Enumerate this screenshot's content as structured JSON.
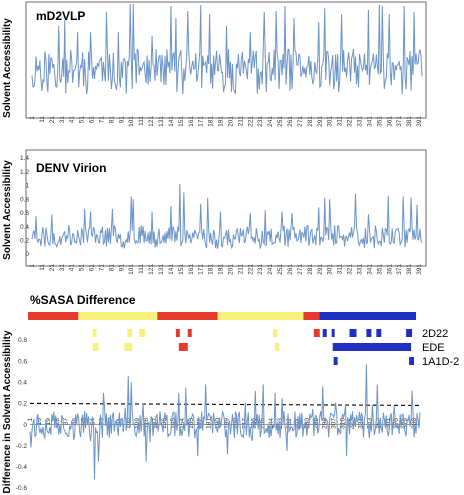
{
  "line_color": "#6b94c8",
  "chart_data": [
    {
      "type": "line",
      "title": "mD2VLP",
      "ylabel": "Solvent Accessibility",
      "xlabel": "",
      "x_tick_labels": [
        "1",
        "11",
        "21",
        "31",
        "41",
        "51",
        "61",
        "71",
        "81",
        "91",
        "101",
        "111",
        "121",
        "131",
        "141",
        "151",
        "161",
        "171",
        "181",
        "191",
        "201",
        "211",
        "221",
        "231",
        "241",
        "251",
        "261",
        "271",
        "281",
        "291",
        "301",
        "311",
        "321",
        "331",
        "341",
        "351",
        "361",
        "371",
        "381",
        "391"
      ],
      "y_tick_labels": [],
      "ylim": [
        0,
        1
      ],
      "n_residues": 394,
      "peaks": [
        [
          28,
          0.78
        ],
        [
          34,
          0.84
        ],
        [
          47,
          0.72
        ],
        [
          60,
          0.72
        ],
        [
          76,
          0.92
        ],
        [
          88,
          0.72
        ],
        [
          100,
          1.0
        ],
        [
          103,
          1.0
        ],
        [
          122,
          0.68
        ],
        [
          141,
          0.98
        ],
        [
          146,
          0.86
        ],
        [
          158,
          0.93
        ],
        [
          171,
          0.99
        ],
        [
          180,
          0.9
        ],
        [
          197,
          0.78
        ],
        [
          221,
          0.72
        ],
        [
          235,
          0.92
        ],
        [
          247,
          0.93
        ],
        [
          256,
          0.98
        ],
        [
          265,
          0.86
        ],
        [
          290,
          0.82
        ],
        [
          296,
          0.96
        ],
        [
          313,
          0.9
        ],
        [
          340,
          0.94
        ],
        [
          351,
          0.99
        ],
        [
          354,
          0.98
        ],
        [
          361,
          0.9
        ],
        [
          376,
          0.98
        ],
        [
          386,
          0.92
        ]
      ],
      "baseline": [
        0.2,
        0.55
      ],
      "seed": 11
    },
    {
      "type": "line",
      "title": "DENV Virion",
      "ylabel": "Solvent Accessibility",
      "xlabel": "",
      "x_tick_labels": [
        "1",
        "11",
        "21",
        "31",
        "41",
        "51",
        "61",
        "71",
        "81",
        "91",
        "101",
        "111",
        "121",
        "131",
        "141",
        "151",
        "161",
        "171",
        "181",
        "191",
        "201",
        "211",
        "221",
        "231",
        "241",
        "251",
        "261",
        "271",
        "281",
        "291",
        "301",
        "311",
        "321",
        "331",
        "341",
        "351",
        "361",
        "371",
        "381",
        "391"
      ],
      "y_tick_labels": [
        "0",
        "0.2",
        "0.4",
        "0.6",
        "0.8",
        "1",
        "1.2",
        "1.4"
      ],
      "ylim": [
        0,
        1.4
      ],
      "n_residues": 394,
      "peaks": [
        [
          5,
          0.55
        ],
        [
          21,
          0.58
        ],
        [
          54,
          0.66
        ],
        [
          60,
          0.62
        ],
        [
          82,
          0.66
        ],
        [
          101,
          0.84
        ],
        [
          103,
          0.8
        ],
        [
          122,
          0.62
        ],
        [
          141,
          0.7
        ],
        [
          150,
          1.02
        ],
        [
          154,
          0.9
        ],
        [
          171,
          0.73
        ],
        [
          178,
          0.82
        ],
        [
          191,
          0.62
        ],
        [
          221,
          0.6
        ],
        [
          236,
          0.64
        ],
        [
          253,
          0.62
        ],
        [
          263,
          0.6
        ],
        [
          290,
          0.68
        ],
        [
          296,
          0.82
        ],
        [
          301,
          0.8
        ],
        [
          327,
          0.88
        ],
        [
          340,
          0.58
        ],
        [
          360,
          0.85
        ],
        [
          375,
          0.84
        ],
        [
          383,
          0.82
        ],
        [
          389,
          0.72
        ]
      ],
      "baseline": [
        0.15,
        0.42
      ],
      "seed": 23
    },
    {
      "type": "line",
      "title": "%SASA Difference",
      "ylabel": "Difference in Solvent Accessibility",
      "xlabel": "",
      "x_tick_labels": [
        "1",
        "10",
        "19",
        "28",
        "37",
        "46",
        "55",
        "64",
        "73",
        "82",
        "91",
        "100",
        "109",
        "118",
        "127",
        "136",
        "145",
        "154",
        "163",
        "172",
        "181",
        "190",
        "199",
        "208",
        "217",
        "226",
        "235",
        "244",
        "253",
        "262",
        "271",
        "280",
        "289",
        "298",
        "307",
        "316",
        "325",
        "334",
        "343",
        "352",
        "361",
        "370",
        "379",
        "388"
      ],
      "y_tick_labels": [
        "-0.6",
        "-0.4",
        "-0.2",
        "0",
        "0.2",
        "0.4",
        "0.6",
        "0.8"
      ],
      "ylim": [
        -0.6,
        0.8
      ],
      "threshold": 0.2,
      "n_residues": 394,
      "peaks": [
        [
          66,
          -0.52
        ],
        [
          70,
          -0.35
        ],
        [
          100,
          0.46
        ],
        [
          103,
          0.4
        ],
        [
          118,
          -0.35
        ],
        [
          151,
          0.3
        ],
        [
          158,
          0.35
        ],
        [
          170,
          -0.3
        ],
        [
          178,
          0.38
        ],
        [
          228,
          0.32
        ],
        [
          236,
          0.38
        ],
        [
          248,
          0.3
        ],
        [
          296,
          0.36
        ],
        [
          340,
          0.57
        ],
        [
          351,
          0.38
        ],
        [
          386,
          0.32
        ],
        [
          75,
          0.3
        ],
        [
          200,
          -0.28
        ],
        [
          260,
          -0.25
        ],
        [
          320,
          -0.3
        ]
      ],
      "domain_bar": [
        {
          "start": 1,
          "end": 52,
          "color": "#e63a2c"
        },
        {
          "start": 52,
          "end": 132,
          "color": "#f7f07a"
        },
        {
          "start": 132,
          "end": 193,
          "color": "#e63a2c"
        },
        {
          "start": 193,
          "end": 280,
          "color": "#f7f07a"
        },
        {
          "start": 280,
          "end": 296,
          "color": "#e63a2c"
        },
        {
          "start": 296,
          "end": 394,
          "color": "#1f2fc0"
        }
      ],
      "epitope_rows": [
        {
          "label": "2D22",
          "blocks": [
            {
              "start": 64,
              "end": 68,
              "color": "#f7f07a"
            },
            {
              "start": 99,
              "end": 104,
              "color": "#f7f07a"
            },
            {
              "start": 111,
              "end": 117,
              "color": "#f7f07a"
            },
            {
              "start": 148,
              "end": 152,
              "color": "#e63a2c"
            },
            {
              "start": 160,
              "end": 164,
              "color": "#e63a2c"
            },
            {
              "start": 246,
              "end": 250,
              "color": "#f7f07a"
            },
            {
              "start": 287,
              "end": 293,
              "color": "#e63a2c"
            },
            {
              "start": 296,
              "end": 300,
              "color": "#1f2fc0"
            },
            {
              "start": 305,
              "end": 308,
              "color": "#1f2fc0"
            },
            {
              "start": 323,
              "end": 330,
              "color": "#1f2fc0"
            },
            {
              "start": 340,
              "end": 345,
              "color": "#1f2fc0"
            },
            {
              "start": 350,
              "end": 355,
              "color": "#1f2fc0"
            },
            {
              "start": 380,
              "end": 386,
              "color": "#1f2fc0"
            }
          ]
        },
        {
          "label": "EDE",
          "blocks": [
            {
              "start": 64,
              "end": 70,
              "color": "#f7f07a"
            },
            {
              "start": 96,
              "end": 104,
              "color": "#f7f07a"
            },
            {
              "start": 151,
              "end": 160,
              "color": "#e63a2c"
            },
            {
              "start": 248,
              "end": 252,
              "color": "#f7f07a"
            },
            {
              "start": 306,
              "end": 385,
              "color": "#1f2fc0"
            }
          ]
        },
        {
          "label": "1A1D-2",
          "blocks": [
            {
              "start": 307,
              "end": 311,
              "color": "#1f2fc0"
            },
            {
              "start": 383,
              "end": 388,
              "color": "#1f2fc0"
            }
          ]
        }
      ],
      "seed": 37
    }
  ]
}
